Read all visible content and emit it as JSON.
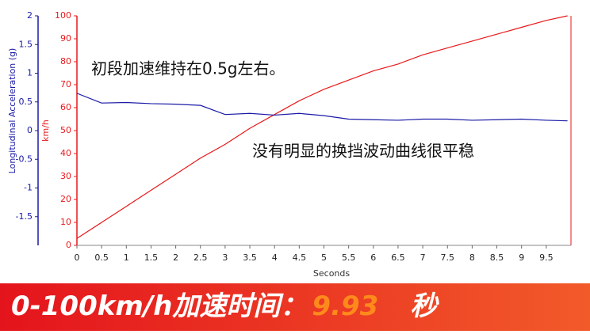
{
  "chart_data": {
    "type": "line",
    "x_label": "Seconds",
    "y_label": "km/h",
    "y2_label": "Longitudinal Acceleration (g)",
    "annotations": [
      "初段加速维持在0.5g左右。",
      "没有明显的换挡波动曲线很平稳"
    ],
    "x": [
      0,
      0.5,
      1,
      1.5,
      2,
      2.5,
      3,
      3.5,
      4,
      4.5,
      5,
      5.5,
      6,
      6.5,
      7,
      7.5,
      8,
      8.5,
      9,
      9.5,
      9.93
    ],
    "series": [
      {
        "name": "km/h",
        "color": "#e8191b",
        "values": [
          3,
          10,
          17,
          24,
          31,
          38,
          44,
          51,
          57,
          63,
          68,
          72,
          76,
          79,
          83,
          86,
          89,
          92,
          95,
          98,
          100
        ]
      },
      {
        "name": "Longitudinal Acceleration (g)",
        "color": "#1a1aa6",
        "axis": "y2",
        "values": [
          0.65,
          0.48,
          0.49,
          0.47,
          0.46,
          0.44,
          0.28,
          0.3,
          0.27,
          0.3,
          0.26,
          0.2,
          0.19,
          0.18,
          0.2,
          0.2,
          0.18,
          0.19,
          0.2,
          0.18,
          0.17
        ]
      }
    ],
    "xlim": [
      0,
      10
    ],
    "xticks": [
      0,
      0.5,
      1,
      1.5,
      2,
      2.5,
      3,
      3.5,
      4,
      4.5,
      5,
      5.5,
      6,
      6.5,
      7,
      7.5,
      8,
      8.5,
      9,
      9.5
    ],
    "ylim": [
      0,
      100
    ],
    "yticks": [
      0,
      10,
      20,
      30,
      40,
      50,
      60,
      70,
      80,
      90,
      100
    ],
    "y2lim": [
      -2,
      2
    ],
    "y2ticks": [
      -1.5,
      -1,
      -0.5,
      0,
      0.5,
      1,
      1.5,
      2
    ],
    "banner": {
      "prefix": "0-100km/h加速时间：",
      "time": "9.93",
      "unit": "秒"
    }
  }
}
